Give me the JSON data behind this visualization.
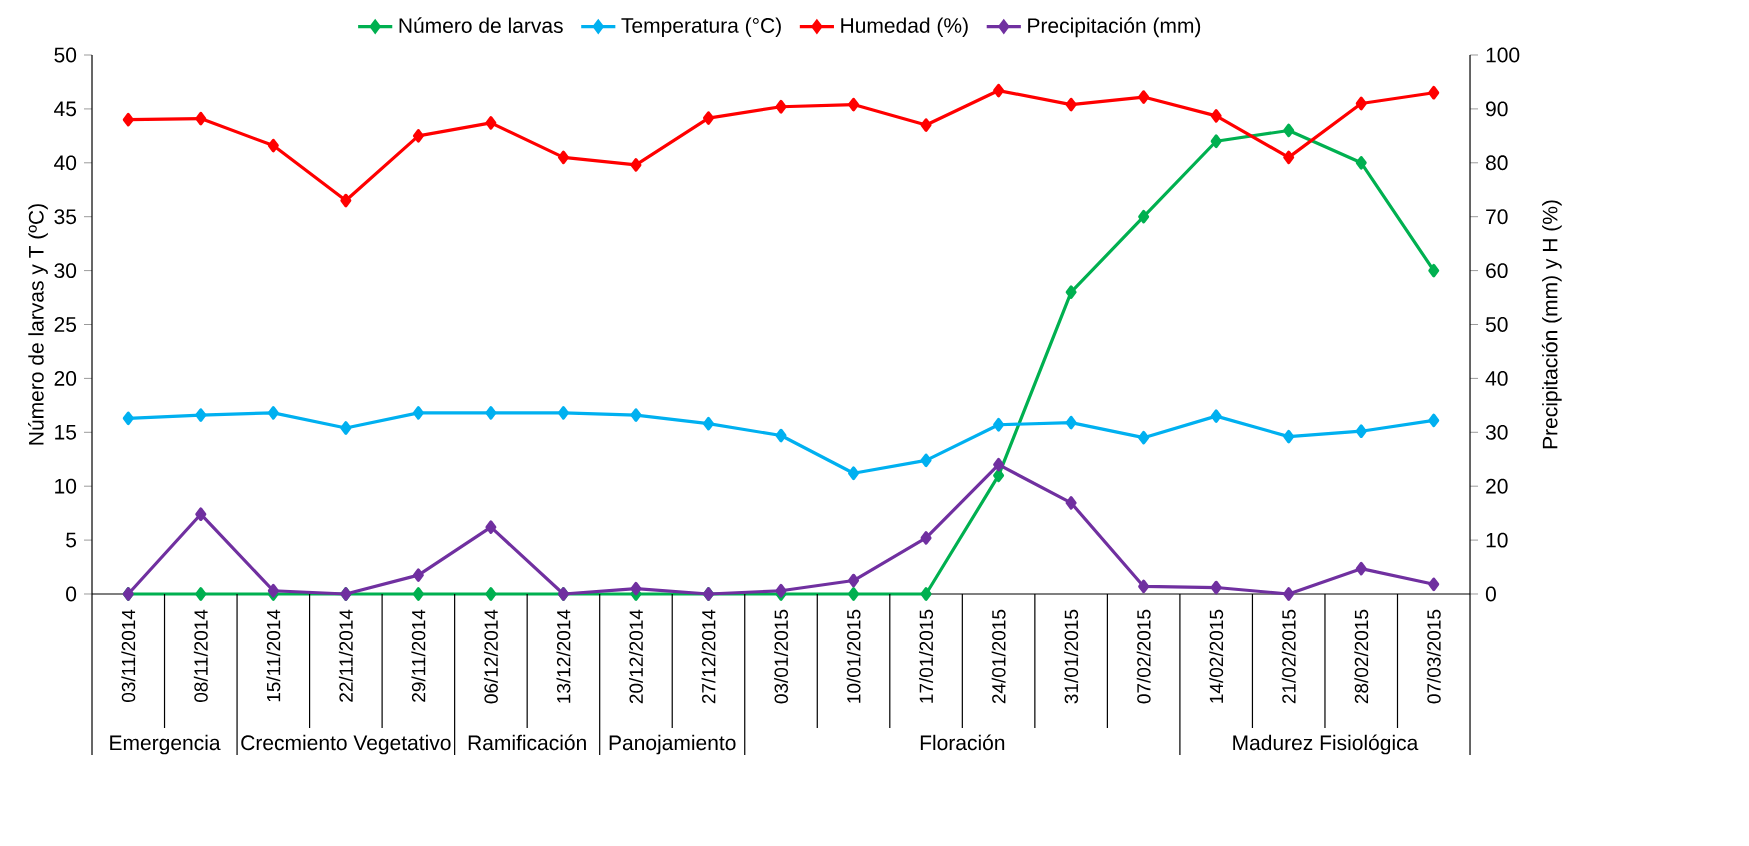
{
  "chart_data": {
    "type": "line",
    "ylabel": "Número de larvas y T (ºC)",
    "y2label": "Precipitación (mm) y H (%)",
    "categories": [
      "03/11/2014",
      "08/11/2014",
      "15/11/2014",
      "22/11/2014",
      "29/11/2014",
      "06/12/2014",
      "13/12/2014",
      "20/12/2014",
      "27/12/2014",
      "03/01/2015",
      "10/01/2015",
      "17/01/2015",
      "24/01/2015",
      "31/01/2015",
      "07/02/2015",
      "14/02/2015",
      "21/02/2015",
      "28/02/2015",
      "07/03/2015"
    ],
    "series": [
      {
        "name": "Número de larvas",
        "color": "#00b050",
        "values": [
          0,
          0,
          0,
          0,
          0,
          0,
          0,
          0,
          0,
          0,
          0,
          0,
          11,
          28,
          35,
          42,
          43,
          40,
          30
        ]
      },
      {
        "name": "Temperatura (°C)",
        "color": "#00b0f0",
        "values": [
          16.3,
          16.6,
          16.8,
          15.4,
          16.8,
          16.8,
          16.8,
          16.6,
          15.8,
          14.7,
          11.2,
          12.4,
          15.7,
          15.9,
          14.5,
          16.5,
          14.6,
          15.1,
          16.1
        ]
      },
      {
        "name": "Humedad (%)",
        "color": "#ff0000",
        "axis": "y2",
        "values": [
          88,
          88.2,
          83.2,
          73,
          85,
          87.4,
          81,
          79.6,
          88.3,
          90.4,
          90.8,
          87,
          93.4,
          90.8,
          92.2,
          88.7,
          81,
          91,
          93
        ]
      },
      {
        "name": "Precipitación (mm)",
        "color": "#7030a0",
        "axis": "y2",
        "values": [
          0,
          14.8,
          0.6,
          0,
          3.5,
          12.4,
          0,
          1,
          0,
          0.6,
          2.5,
          10.4,
          24,
          16.9,
          1.4,
          1.2,
          0,
          4.7,
          1.8
        ]
      }
    ],
    "ylim": [
      0,
      50
    ],
    "yticks": [
      0,
      5,
      10,
      15,
      20,
      25,
      30,
      35,
      40,
      45,
      50
    ],
    "y2lim": [
      0,
      100
    ],
    "y2ticks": [
      0,
      10,
      20,
      30,
      40,
      50,
      60,
      70,
      80,
      90,
      100
    ],
    "annotations": [
      "Emergencia",
      "Crecmiento Vegetativo",
      "Ramificación",
      "Panojamiento",
      "Floración",
      "Madurez Fisiológica"
    ],
    "legend": "top",
    "marker": "diamond",
    "line_style": "solid",
    "grid": false
  }
}
